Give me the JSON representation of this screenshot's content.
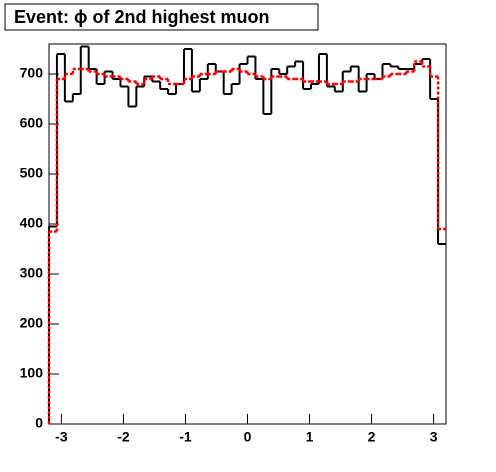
{
  "chart_data": {
    "type": "histogram",
    "title": "Event: ϕ of 2nd highest muon",
    "bins": [
      -3.2,
      -3.072,
      -2.944,
      -2.816,
      -2.688,
      -2.56,
      -2.432,
      -2.304,
      -2.176,
      -2.048,
      -1.92,
      -1.792,
      -1.664,
      -1.536,
      -1.408,
      -1.28,
      -1.152,
      -1.024,
      -0.896,
      -0.768,
      -0.64,
      -0.512,
      -0.384,
      -0.256,
      -0.128,
      0,
      0.128,
      0.256,
      0.384,
      0.512,
      0.64,
      0.768,
      0.896,
      1.024,
      1.152,
      1.28,
      1.408,
      1.536,
      1.664,
      1.792,
      1.92,
      2.048,
      2.176,
      2.304,
      2.432,
      2.56,
      2.688,
      2.816,
      2.944,
      3.072,
      3.2
    ],
    "series": [
      {
        "color": "#000000",
        "style": "solid",
        "values": [
          395,
          740,
          645,
          660,
          755,
          710,
          680,
          705,
          690,
          675,
          635,
          675,
          695,
          685,
          670,
          660,
          680,
          750,
          665,
          690,
          720,
          705,
          660,
          680,
          720,
          735,
          690,
          620,
          710,
          700,
          715,
          725,
          670,
          680,
          740,
          675,
          665,
          705,
          715,
          665,
          700,
          690,
          720,
          715,
          710,
          710,
          720,
          730,
          650,
          360
        ]
      },
      {
        "color": "#ff0000",
        "style": "dashed",
        "values": [
          385,
          690,
          700,
          710,
          710,
          705,
          700,
          695,
          695,
          690,
          685,
          680,
          690,
          695,
          690,
          680,
          680,
          690,
          695,
          700,
          700,
          705,
          705,
          710,
          705,
          700,
          695,
          690,
          695,
          695,
          690,
          690,
          685,
          685,
          685,
          680,
          680,
          685,
          685,
          690,
          690,
          690,
          695,
          700,
          700,
          705,
          725,
          715,
          695,
          390
        ]
      }
    ],
    "xlim": [
      -3.2,
      3.2
    ],
    "ylim": [
      0,
      760
    ],
    "xticks": [
      -3,
      -2,
      -1,
      0,
      1,
      2,
      3
    ],
    "yticks": [
      0,
      100,
      200,
      300,
      400,
      500,
      600,
      700
    ]
  }
}
